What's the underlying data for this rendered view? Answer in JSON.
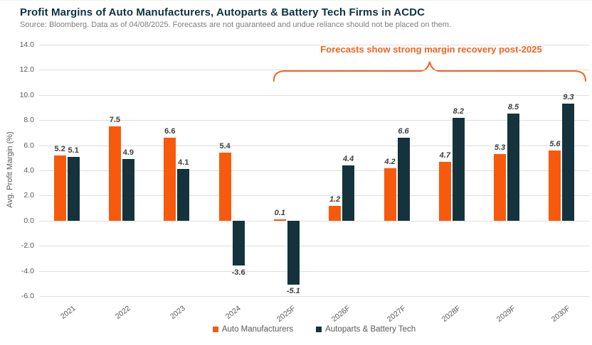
{
  "header": {
    "title": "Profit Margins of Auto Manufacturers, Autoparts & Battery Tech Firms in ACDC",
    "subtitle": "Source: Bloomberg.  Data as of 04/08/2025. Forecasts are not guaranteed and undue reliance should not be placed on them."
  },
  "annotation": {
    "label": "Forecasts show strong margin recovery post-2025",
    "color": "#F2641F",
    "spans_categories": [
      "2025F",
      "2026F",
      "2027F",
      "2028F",
      "2029F",
      "2030F"
    ]
  },
  "chart_data": {
    "type": "bar",
    "title": "Profit Margins of Auto Manufacturers, Autoparts & Battery Tech Firms in ACDC",
    "categories": [
      "2021",
      "2022",
      "2023",
      "2024",
      "2025F",
      "2026F",
      "2027F",
      "2028F",
      "2029F",
      "2030F"
    ],
    "series": [
      {
        "name": "Auto Manufacturers",
        "color": "#F85A0D",
        "values": [
          5.2,
          7.5,
          6.6,
          5.4,
          0.1,
          1.2,
          4.2,
          4.7,
          5.3,
          5.6
        ]
      },
      {
        "name": "Autoparts & Battery Tech",
        "color": "#14333C",
        "values": [
          5.1,
          4.9,
          4.1,
          -3.6,
          -5.1,
          4.4,
          6.6,
          8.2,
          8.5,
          9.3
        ]
      }
    ],
    "xlabel": "",
    "ylabel": "Avg. Profit Margin (%)",
    "ylim": [
      -6,
      14
    ],
    "ytick_step": 2,
    "yticks": [
      "14.0",
      "12.0",
      "10.0",
      "8.0",
      "6.0",
      "4.0",
      "2.0",
      "0.0",
      "-2.0",
      "-4.0",
      "-6.0"
    ],
    "grid": true,
    "legend_position": "bottom",
    "forecast_from_index": 4
  }
}
